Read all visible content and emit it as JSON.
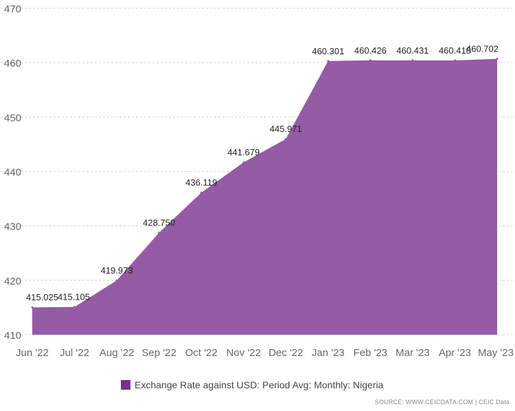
{
  "chart_data": {
    "type": "area",
    "x": [
      "Jun '22",
      "Jul '22",
      "Aug '22",
      "Sep '22",
      "Oct '22",
      "Nov '22",
      "Dec '22",
      "Jan '23",
      "Feb '23",
      "Mar '23",
      "Apr '23",
      "May '23"
    ],
    "series": [
      {
        "name": "Exchange Rate against USD: Period Avg: Monthly: Nigeria",
        "values": [
          415.025,
          415.105,
          419.973,
          428.75,
          436.119,
          441.679,
          445.971,
          460.301,
          460.426,
          460.431,
          460.418,
          460.702
        ],
        "labels": [
          "415.025",
          "415.105",
          "419.973",
          "428.750",
          "436.119",
          "441.679",
          "445.971",
          "460.301",
          "460.426",
          "460.431",
          "460.418",
          "460.702"
        ],
        "color": "#955ba5"
      }
    ],
    "ylim": [
      410,
      470
    ],
    "yticks": [
      410,
      420,
      430,
      440,
      450,
      460,
      470
    ],
    "grid": true,
    "legend_position": "bottom",
    "legend_swatch_color": "#7a2e8e"
  },
  "source": "SOURCE: WWW.CEICDATA.COM | CEIC Data"
}
